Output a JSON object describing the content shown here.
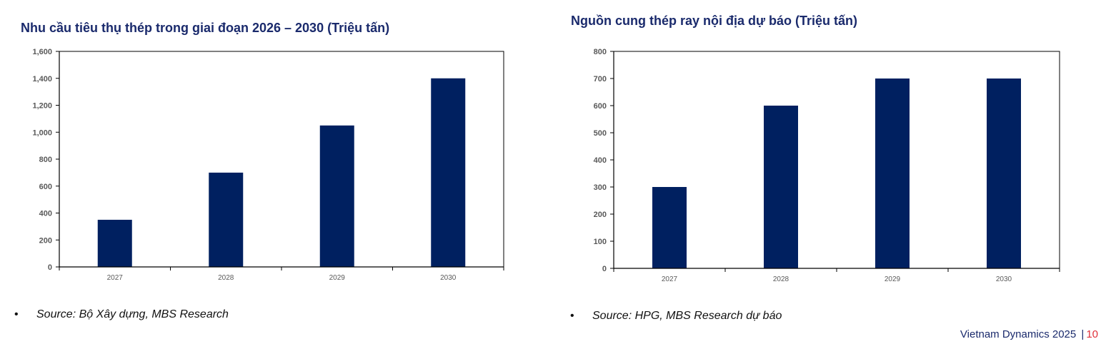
{
  "chart_data": [
    {
      "type": "bar",
      "title": "Nhu cầu tiêu thụ thép trong giai đoạn 2026 – 2030 (Triệu tấn)",
      "categories": [
        "2027",
        "2028",
        "2029",
        "2030"
      ],
      "values": [
        350,
        700,
        1050,
        1400
      ],
      "yticks": [
        "0",
        "200",
        "400",
        "600",
        "800",
        "1,000",
        "1,200",
        "1,400",
        "1,600"
      ],
      "ylim": [
        0,
        1600
      ],
      "grid": false,
      "bar_color": "#002060",
      "source": "Source: Bộ Xây dựng, MBS Research"
    },
    {
      "type": "bar",
      "title": "Nguồn cung thép ray nội địa dự báo (Triệu tấn)",
      "categories": [
        "2027",
        "2028",
        "2029",
        "2030"
      ],
      "values": [
        300,
        600,
        700,
        700
      ],
      "yticks": [
        "0",
        "100",
        "200",
        "300",
        "400",
        "500",
        "600",
        "700",
        "800"
      ],
      "ylim": [
        0,
        800
      ],
      "grid": false,
      "bar_color": "#002060",
      "source": "Source: HPG, MBS Research dự báo"
    }
  ],
  "footer": {
    "report": "Vietnam Dynamics 2025",
    "separator": "|",
    "page": "10"
  },
  "bullet": "•"
}
